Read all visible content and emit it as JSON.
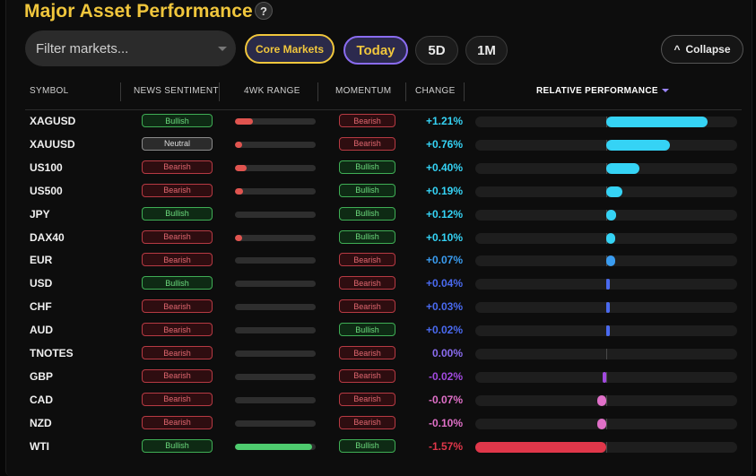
{
  "header": {
    "title": "Major Asset Performance",
    "help_glyph": "?"
  },
  "toolbar": {
    "filter_placeholder": "Filter markets...",
    "core_markets_label": "Core Markets",
    "periods": [
      "Today",
      "5D",
      "1M"
    ],
    "selected_period": "Today",
    "collapse_label": "Collapse",
    "collapse_icon": "chevron-up-icon"
  },
  "table": {
    "columns": {
      "symbol": "SYMBOL",
      "sentiment": "NEWS SENTIMENT",
      "range": "4WK RANGE",
      "momentum": "MOMENTUM",
      "change": "CHANGE",
      "relative": "RELATIVE PERFORMANCE"
    },
    "sort_column": "relative",
    "rows": [
      {
        "symbol": "XAGUSD",
        "sentiment": "Bullish",
        "range_pct": 0.22,
        "momentum": "Bearish",
        "change": "+1.21%",
        "change_value": 1.21
      },
      {
        "symbol": "XAUUSD",
        "sentiment": "Neutral",
        "range_pct": 0.09,
        "momentum": "Bearish",
        "change": "+0.76%",
        "change_value": 0.76
      },
      {
        "symbol": "US100",
        "sentiment": "Bearish",
        "range_pct": 0.14,
        "momentum": "Bullish",
        "change": "+0.40%",
        "change_value": 0.4
      },
      {
        "symbol": "US500",
        "sentiment": "Bearish",
        "range_pct": 0.1,
        "momentum": "Bullish",
        "change": "+0.19%",
        "change_value": 0.19
      },
      {
        "symbol": "JPY",
        "sentiment": "Bullish",
        "range_pct": 0.0,
        "momentum": "Bullish",
        "change": "+0.12%",
        "change_value": 0.12
      },
      {
        "symbol": "DAX40",
        "sentiment": "Bearish",
        "range_pct": 0.07,
        "momentum": "Bullish",
        "change": "+0.10%",
        "change_value": 0.1
      },
      {
        "symbol": "EUR",
        "sentiment": "Bearish",
        "range_pct": 0.0,
        "momentum": "Bearish",
        "change": "+0.07%",
        "change_value": 0.07
      },
      {
        "symbol": "USD",
        "sentiment": "Bullish",
        "range_pct": 0.0,
        "momentum": "Bearish",
        "change": "+0.04%",
        "change_value": 0.04
      },
      {
        "symbol": "CHF",
        "sentiment": "Bearish",
        "range_pct": 0.0,
        "momentum": "Bearish",
        "change": "+0.03%",
        "change_value": 0.03
      },
      {
        "symbol": "AUD",
        "sentiment": "Bearish",
        "range_pct": 0.0,
        "momentum": "Bullish",
        "change": "+0.02%",
        "change_value": 0.02
      },
      {
        "symbol": "TNOTES",
        "sentiment": "Bearish",
        "range_pct": 0.0,
        "momentum": "Bearish",
        "change": "0.00%",
        "change_value": 0.0
      },
      {
        "symbol": "GBP",
        "sentiment": "Bearish",
        "range_pct": 0.0,
        "momentum": "Bearish",
        "change": "-0.02%",
        "change_value": -0.02
      },
      {
        "symbol": "CAD",
        "sentiment": "Bearish",
        "range_pct": 0.0,
        "momentum": "Bearish",
        "change": "-0.07%",
        "change_value": -0.07
      },
      {
        "symbol": "NZD",
        "sentiment": "Bearish",
        "range_pct": 0.0,
        "momentum": "Bearish",
        "change": "-0.10%",
        "change_value": -0.1
      },
      {
        "symbol": "WTI",
        "sentiment": "Bullish",
        "range_pct": 0.95,
        "momentum": "Bullish",
        "change": "-1.57%",
        "change_value": -1.57
      }
    ]
  },
  "colors": {
    "title": "#f0c63c",
    "range_low": "#e0544f",
    "range_high": "#4ecb6e",
    "change_strong_pos": "#35d3f5",
    "change_pos": "#3a9cf0",
    "change_weak_pos": "#4a6af0",
    "change_zero": "#8a6cf0",
    "change_weak_neg": "#a24ae0",
    "change_neg": "#e070c8",
    "change_strong_neg": "#e0374a"
  }
}
